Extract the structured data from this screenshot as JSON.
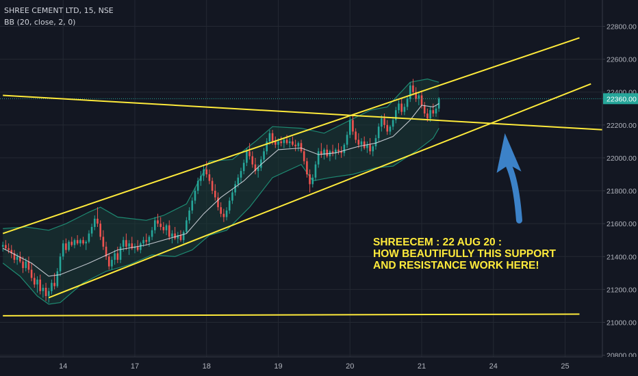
{
  "header": {
    "title": "SHREE CEMENT LTD, 15, NSE",
    "indicator": "BB (20, close, 2, 0)"
  },
  "colors": {
    "background": "#131722",
    "grid": "#242933",
    "axis_text": "#b2b5be",
    "candle_up": "#26a69a",
    "candle_down": "#ef5350",
    "bb_band": "#1e8a72",
    "bb_fill": "#1a3a36",
    "bb_basis": "#e0e3eb",
    "trendline": "#ffeb3b",
    "last_price_line": "#26a69a",
    "last_price_label_bg": "#26a69a",
    "arrow": "#3c82c8"
  },
  "annotation": {
    "lines": [
      "SHREECEM : 22 AUG 20 :",
      "HOW BEAUTIFULLY THIS SUPPORT",
      "AND RESISTANCE WORK HERE!"
    ]
  },
  "chart_data": {
    "type": "candlestick",
    "symbol": "SHREE CEMENT LTD",
    "interval": "15",
    "exchange": "NSE",
    "last_price": 22360,
    "last_price_label": "22360.00",
    "y_ticks": [
      "22800.00",
      "22600.00",
      "22400.00",
      "22200.00",
      "22000.00",
      "21800.00",
      "21600.00",
      "21400.00",
      "21200.00",
      "21000.00",
      "20800.00"
    ],
    "y_tick_values": [
      22800,
      22600,
      22400,
      22200,
      22000,
      21800,
      21600,
      21400,
      21200,
      21000,
      20800
    ],
    "x_ticks": [
      "14",
      "17",
      "18",
      "19",
      "20",
      "21",
      "24",
      "25"
    ],
    "ylim": [
      20790,
      22960
    ],
    "x_range_bars": [
      0,
      210
    ],
    "x_tick_bars": [
      21,
      46,
      71,
      96,
      121,
      146,
      171,
      196
    ],
    "candles": [
      [
        0,
        21460,
        21490,
        21430,
        21470
      ],
      [
        1,
        21470,
        21500,
        21440,
        21450
      ],
      [
        2,
        21450,
        21480,
        21420,
        21440
      ],
      [
        3,
        21440,
        21470,
        21390,
        21420
      ],
      [
        4,
        21420,
        21440,
        21360,
        21380
      ],
      [
        5,
        21380,
        21420,
        21350,
        21400
      ],
      [
        6,
        21400,
        21430,
        21360,
        21370
      ],
      [
        7,
        21370,
        21400,
        21300,
        21330
      ],
      [
        8,
        21330,
        21390,
        21310,
        21370
      ],
      [
        9,
        21370,
        21400,
        21300,
        21320
      ],
      [
        10,
        21320,
        21360,
        21250,
        21270
      ],
      [
        11,
        21270,
        21300,
        21210,
        21230
      ],
      [
        12,
        21230,
        21280,
        21180,
        21260
      ],
      [
        13,
        21260,
        21290,
        21170,
        21190
      ],
      [
        14,
        21190,
        21230,
        21150,
        21210
      ],
      [
        15,
        21210,
        21240,
        21130,
        21160
      ],
      [
        16,
        21160,
        21210,
        21120,
        21190
      ],
      [
        17,
        21190,
        21260,
        21170,
        21240
      ],
      [
        18,
        21240,
        21300,
        21200,
        21220
      ],
      [
        19,
        21220,
        21330,
        21210,
        21310
      ],
      [
        20,
        21310,
        21420,
        21280,
        21400
      ],
      [
        21,
        21400,
        21500,
        21380,
        21480
      ],
      [
        22,
        21480,
        21510,
        21420,
        21440
      ],
      [
        23,
        21440,
        21500,
        21430,
        21490
      ],
      [
        24,
        21490,
        21520,
        21460,
        21470
      ],
      [
        25,
        21470,
        21510,
        21450,
        21500
      ],
      [
        26,
        21500,
        21530,
        21470,
        21480
      ],
      [
        27,
        21480,
        21510,
        21460,
        21500
      ],
      [
        28,
        21500,
        21520,
        21470,
        21480
      ],
      [
        29,
        21480,
        21500,
        21440,
        21490
      ],
      [
        30,
        21490,
        21560,
        21480,
        21540
      ],
      [
        31,
        21540,
        21600,
        21520,
        21580
      ],
      [
        32,
        21580,
        21650,
        21560,
        21630
      ],
      [
        33,
        21630,
        21700,
        21580,
        21600
      ],
      [
        34,
        21600,
        21620,
        21500,
        21520
      ],
      [
        35,
        21520,
        21560,
        21440,
        21460
      ],
      [
        36,
        21460,
        21490,
        21380,
        21400
      ],
      [
        37,
        21400,
        21420,
        21320,
        21340
      ],
      [
        38,
        21340,
        21400,
        21320,
        21380
      ],
      [
        39,
        21380,
        21440,
        21350,
        21420
      ],
      [
        40,
        21420,
        21460,
        21360,
        21380
      ],
      [
        41,
        21380,
        21480,
        21360,
        21460
      ],
      [
        42,
        21460,
        21520,
        21430,
        21500
      ],
      [
        43,
        21500,
        21540,
        21440,
        21460
      ],
      [
        44,
        21460,
        21500,
        21410,
        21480
      ],
      [
        45,
        21480,
        21520,
        21440,
        21450
      ],
      [
        46,
        21450,
        21480,
        21420,
        21460
      ],
      [
        47,
        21460,
        21500,
        21430,
        21440
      ],
      [
        48,
        21440,
        21490,
        21420,
        21480
      ],
      [
        49,
        21480,
        21520,
        21460,
        21500
      ],
      [
        50,
        21500,
        21540,
        21470,
        21490
      ],
      [
        51,
        21490,
        21530,
        21460,
        21520
      ],
      [
        52,
        21520,
        21580,
        21500,
        21560
      ],
      [
        53,
        21560,
        21640,
        21540,
        21620
      ],
      [
        54,
        21620,
        21660,
        21580,
        21600
      ],
      [
        55,
        21600,
        21640,
        21560,
        21580
      ],
      [
        56,
        21580,
        21610,
        21540,
        21560
      ],
      [
        57,
        21560,
        21600,
        21530,
        21590
      ],
      [
        58,
        21590,
        21620,
        21500,
        21520
      ],
      [
        59,
        21520,
        21560,
        21480,
        21540
      ],
      [
        60,
        21540,
        21580,
        21500,
        21510
      ],
      [
        61,
        21510,
        21550,
        21480,
        21530
      ],
      [
        62,
        21530,
        21560,
        21490,
        21500
      ],
      [
        63,
        21500,
        21560,
        21480,
        21550
      ],
      [
        64,
        21550,
        21640,
        21540,
        21620
      ],
      [
        65,
        21620,
        21700,
        21600,
        21680
      ],
      [
        66,
        21680,
        21760,
        21660,
        21740
      ],
      [
        67,
        21740,
        21820,
        21720,
        21800
      ],
      [
        68,
        21800,
        21880,
        21780,
        21860
      ],
      [
        69,
        21860,
        21920,
        21830,
        21890
      ],
      [
        70,
        21890,
        21960,
        21860,
        21930
      ],
      [
        71,
        21930,
        21980,
        21880,
        21900
      ],
      [
        72,
        21900,
        21930,
        21840,
        21860
      ],
      [
        73,
        21860,
        21880,
        21780,
        21800
      ],
      [
        74,
        21800,
        21840,
        21740,
        21760
      ],
      [
        75,
        21760,
        21790,
        21680,
        21700
      ],
      [
        76,
        21700,
        21730,
        21640,
        21660
      ],
      [
        77,
        21660,
        21690,
        21610,
        21640
      ],
      [
        78,
        21640,
        21700,
        21620,
        21680
      ],
      [
        79,
        21680,
        21760,
        21660,
        21740
      ],
      [
        80,
        21740,
        21810,
        21720,
        21790
      ],
      [
        81,
        21790,
        21860,
        21770,
        21840
      ],
      [
        82,
        21840,
        21900,
        21820,
        21880
      ],
      [
        83,
        21880,
        21940,
        21850,
        21920
      ],
      [
        84,
        21920,
        21990,
        21900,
        21970
      ],
      [
        85,
        21970,
        22060,
        21950,
        22040
      ],
      [
        86,
        22040,
        22090,
        21990,
        22010
      ],
      [
        87,
        22010,
        22040,
        21940,
        21960
      ],
      [
        88,
        21960,
        22000,
        21900,
        21920
      ],
      [
        89,
        21920,
        21960,
        21880,
        21940
      ],
      [
        90,
        21940,
        22010,
        21920,
        21990
      ],
      [
        91,
        21990,
        22060,
        21970,
        22040
      ],
      [
        92,
        22040,
        22120,
        22020,
        22100
      ],
      [
        93,
        22100,
        22170,
        22080,
        22150
      ],
      [
        94,
        22150,
        22170,
        22080,
        22100
      ],
      [
        95,
        22100,
        22130,
        22060,
        22080
      ],
      [
        96,
        22080,
        22120,
        22050,
        22100
      ],
      [
        97,
        22100,
        22130,
        22070,
        22090
      ],
      [
        98,
        22090,
        22120,
        22060,
        22110
      ],
      [
        99,
        22110,
        22140,
        22080,
        22090
      ],
      [
        100,
        22090,
        22120,
        22060,
        22100
      ],
      [
        101,
        22100,
        22130,
        22070,
        22080
      ],
      [
        102,
        22080,
        22110,
        22040,
        22070
      ],
      [
        103,
        22070,
        22100,
        22040,
        22090
      ],
      [
        104,
        22090,
        22110,
        22030,
        22040
      ],
      [
        105,
        22040,
        22060,
        21960,
        21980
      ],
      [
        106,
        21980,
        22000,
        21880,
        21900
      ],
      [
        107,
        21900,
        21930,
        21790,
        21840
      ],
      [
        108,
        21840,
        21900,
        21820,
        21880
      ],
      [
        109,
        21880,
        21980,
        21860,
        21960
      ],
      [
        110,
        21960,
        22060,
        21940,
        22040
      ],
      [
        111,
        22040,
        22090,
        22000,
        22020
      ],
      [
        112,
        22020,
        22060,
        21990,
        22050
      ],
      [
        113,
        22050,
        22080,
        22000,
        22010
      ],
      [
        114,
        22010,
        22050,
        21980,
        22040
      ],
      [
        115,
        22040,
        22080,
        22010,
        22030
      ],
      [
        116,
        22030,
        22060,
        21990,
        22050
      ],
      [
        117,
        22050,
        22090,
        22020,
        22040
      ],
      [
        118,
        22040,
        22070,
        22000,
        22030
      ],
      [
        119,
        22030,
        22090,
        22010,
        22080
      ],
      [
        120,
        22080,
        22160,
        22060,
        22140
      ],
      [
        121,
        22140,
        22250,
        22120,
        22230
      ],
      [
        122,
        22230,
        22260,
        22140,
        22160
      ],
      [
        123,
        22160,
        22180,
        22090,
        22110
      ],
      [
        124,
        22110,
        22150,
        22060,
        22080
      ],
      [
        125,
        22080,
        22120,
        22040,
        22100
      ],
      [
        126,
        22100,
        22130,
        22050,
        22060
      ],
      [
        127,
        22060,
        22100,
        22030,
        22080
      ],
      [
        128,
        22080,
        22120,
        22020,
        22040
      ],
      [
        129,
        22040,
        22080,
        22010,
        22070
      ],
      [
        130,
        22070,
        22140,
        22050,
        22120
      ],
      [
        131,
        22120,
        22210,
        22100,
        22190
      ],
      [
        132,
        22190,
        22260,
        22160,
        22240
      ],
      [
        133,
        22240,
        22270,
        22180,
        22200
      ],
      [
        134,
        22200,
        22230,
        22140,
        22160
      ],
      [
        135,
        22160,
        22200,
        22140,
        22190
      ],
      [
        136,
        22190,
        22250,
        22170,
        22230
      ],
      [
        137,
        22230,
        22310,
        22210,
        22290
      ],
      [
        138,
        22290,
        22350,
        22270,
        22330
      ],
      [
        139,
        22330,
        22360,
        22260,
        22280
      ],
      [
        140,
        22280,
        22330,
        22260,
        22310
      ],
      [
        141,
        22310,
        22380,
        22290,
        22360
      ],
      [
        142,
        22360,
        22460,
        22340,
        22440
      ],
      [
        143,
        22440,
        22480,
        22380,
        22400
      ],
      [
        144,
        22400,
        22430,
        22340,
        22360
      ],
      [
        145,
        22360,
        22400,
        22320,
        22380
      ],
      [
        146,
        22380,
        22410,
        22300,
        22320
      ],
      [
        147,
        22320,
        22340,
        22250,
        22270
      ],
      [
        148,
        22270,
        22300,
        22220,
        22240
      ],
      [
        149,
        22240,
        22310,
        22220,
        22290
      ],
      [
        150,
        22290,
        22330,
        22250,
        22270
      ],
      [
        151,
        22270,
        22320,
        22250,
        22300
      ],
      [
        152,
        22300,
        22370,
        22280,
        22360
      ]
    ],
    "bb_basis": [
      [
        0,
        21450
      ],
      [
        10,
        21360
      ],
      [
        16,
        21280
      ],
      [
        20,
        21290
      ],
      [
        30,
        21360
      ],
      [
        40,
        21440
      ],
      [
        50,
        21470
      ],
      [
        60,
        21520
      ],
      [
        64,
        21540
      ],
      [
        70,
        21660
      ],
      [
        76,
        21760
      ],
      [
        84,
        21860
      ],
      [
        90,
        21960
      ],
      [
        96,
        22050
      ],
      [
        104,
        22060
      ],
      [
        110,
        22020
      ],
      [
        116,
        22030
      ],
      [
        124,
        22070
      ],
      [
        130,
        22090
      ],
      [
        136,
        22130
      ],
      [
        142,
        22230
      ],
      [
        146,
        22320
      ],
      [
        150,
        22310
      ],
      [
        152,
        22330
      ]
    ],
    "bb_upper": [
      [
        0,
        21570
      ],
      [
        8,
        21580
      ],
      [
        16,
        21560
      ],
      [
        22,
        21600
      ],
      [
        30,
        21670
      ],
      [
        34,
        21700
      ],
      [
        40,
        21640
      ],
      [
        50,
        21620
      ],
      [
        56,
        21650
      ],
      [
        64,
        21720
      ],
      [
        72,
        21980
      ],
      [
        80,
        21990
      ],
      [
        88,
        22100
      ],
      [
        94,
        22190
      ],
      [
        104,
        22180
      ],
      [
        112,
        22150
      ],
      [
        120,
        22220
      ],
      [
        128,
        22290
      ],
      [
        134,
        22310
      ],
      [
        142,
        22460
      ],
      [
        148,
        22480
      ],
      [
        152,
        22460
      ]
    ],
    "bb_lower": [
      [
        0,
        21360
      ],
      [
        6,
        21280
      ],
      [
        12,
        21160
      ],
      [
        16,
        21110
      ],
      [
        20,
        21120
      ],
      [
        28,
        21240
      ],
      [
        36,
        21310
      ],
      [
        44,
        21350
      ],
      [
        52,
        21410
      ],
      [
        60,
        21400
      ],
      [
        66,
        21440
      ],
      [
        72,
        21530
      ],
      [
        78,
        21560
      ],
      [
        86,
        21700
      ],
      [
        94,
        21880
      ],
      [
        104,
        21960
      ],
      [
        108,
        21860
      ],
      [
        114,
        21880
      ],
      [
        122,
        21900
      ],
      [
        130,
        21940
      ],
      [
        136,
        21950
      ],
      [
        144,
        22040
      ],
      [
        150,
        22120
      ],
      [
        152,
        22180
      ]
    ],
    "trendlines": [
      {
        "name": "upper-channel",
        "from": [
          0,
          21540
        ],
        "to": [
          201,
          22730
        ]
      },
      {
        "name": "lower-channel",
        "from": [
          16,
          21150
        ],
        "to": [
          205,
          22450
        ]
      },
      {
        "name": "descending-resistance",
        "from": [
          0,
          22380
        ],
        "to": [
          210,
          22170
        ]
      },
      {
        "name": "horizontal-support",
        "from": [
          0,
          21040
        ],
        "to": [
          201,
          21050
        ]
      }
    ],
    "arrow": {
      "from": [
        180,
        21620
      ],
      "to": [
        175,
        22150
      ]
    }
  }
}
